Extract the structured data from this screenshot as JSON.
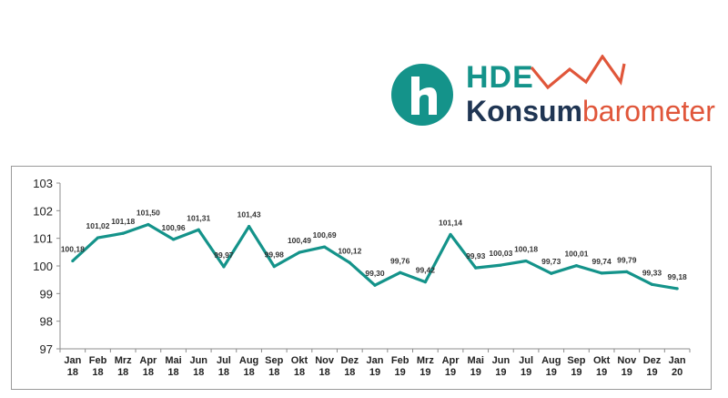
{
  "logo": {
    "brand": "HDE",
    "word_part1": "Konsum",
    "word_part2": "barometer",
    "colors": {
      "teal": "#14938a",
      "navy": "#1f3553",
      "orange": "#e0563a"
    }
  },
  "chart_data": {
    "type": "line",
    "categories": [
      [
        "Jan",
        "18"
      ],
      [
        "Feb",
        "18"
      ],
      [
        "Mrz",
        "18"
      ],
      [
        "Apr",
        "18"
      ],
      [
        "Mai",
        "18"
      ],
      [
        "Jun",
        "18"
      ],
      [
        "Jul",
        "18"
      ],
      [
        "Aug",
        "18"
      ],
      [
        "Sep",
        "18"
      ],
      [
        "Okt",
        "18"
      ],
      [
        "Nov",
        "18"
      ],
      [
        "Dez",
        "18"
      ],
      [
        "Jan",
        "19"
      ],
      [
        "Feb",
        "19"
      ],
      [
        "Mrz",
        "19"
      ],
      [
        "Apr",
        "19"
      ],
      [
        "Mai",
        "19"
      ],
      [
        "Jun",
        "19"
      ],
      [
        "Jul",
        "19"
      ],
      [
        "Aug",
        "19"
      ],
      [
        "Sep",
        "19"
      ],
      [
        "Okt",
        "19"
      ],
      [
        "Nov",
        "19"
      ],
      [
        "Dez",
        "19"
      ],
      [
        "Jan",
        "20"
      ]
    ],
    "values": [
      100.18,
      101.02,
      101.18,
      101.5,
      100.96,
      101.31,
      99.97,
      101.43,
      99.98,
      100.49,
      100.69,
      100.12,
      99.3,
      99.76,
      99.42,
      101.14,
      99.93,
      100.03,
      100.18,
      99.73,
      100.01,
      99.74,
      99.79,
      99.33,
      99.18
    ],
    "value_labels": [
      "100,18",
      "101,02",
      "101,18",
      "101,50",
      "100,96",
      "101,31",
      "99,97",
      "101,43",
      "99,98",
      "100,49",
      "100,69",
      "100,12",
      "99,30",
      "99,76",
      "99,42",
      "101,14",
      "99,93",
      "100,03",
      "100,18",
      "99,73",
      "100,01",
      "99,74",
      "99,79",
      "99,33",
      "99,18"
    ],
    "yticks": [
      "97",
      "98",
      "99",
      "100",
      "101",
      "102",
      "103"
    ],
    "ylim": [
      97,
      103
    ],
    "line_color": "#14938a",
    "grid": false,
    "legend": "none"
  }
}
